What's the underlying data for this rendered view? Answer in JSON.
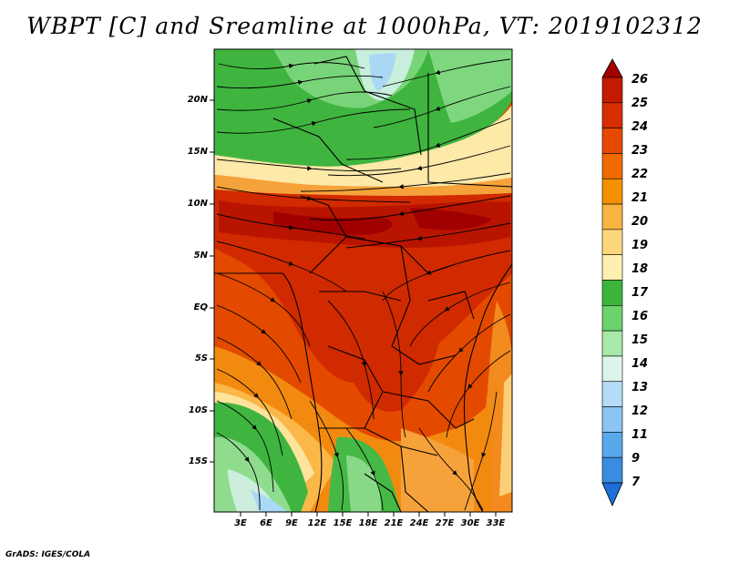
{
  "title": "WBPT [C] and Sreamline at 1000hPa, VT: 2019102312",
  "footer": "GrADS: IGES/COLA",
  "map": {
    "variable": "Wet-bulb potential temperature",
    "units": "C",
    "level": "1000hPa",
    "valid_time": "2019102312",
    "lat_labels": [
      "20N",
      "15N",
      "10N",
      "5N",
      "EQ",
      "5S",
      "10S",
      "15S"
    ],
    "lon_labels": [
      "3E",
      "6E",
      "9E",
      "12E",
      "15E",
      "18E",
      "21E",
      "24E",
      "27E",
      "30E",
      "33E"
    ]
  },
  "colorbar": {
    "labels": [
      "26",
      "25",
      "24",
      "23",
      "22",
      "21",
      "20",
      "19",
      "18",
      "17",
      "16",
      "15",
      "14",
      "13",
      "12",
      "11",
      "9",
      "7"
    ],
    "colors": [
      "#a50000",
      "#c41a00",
      "#d62e00",
      "#e64a00",
      "#f06a00",
      "#f59000",
      "#f8b440",
      "#fcd67a",
      "#fdf0b0",
      "#3cb43c",
      "#6cd26c",
      "#a8e8a8",
      "#dcf4ec",
      "#b4dcf8",
      "#8cc4f4",
      "#5aa8ec",
      "#3a8ce0",
      "#1e6ed8"
    ]
  }
}
